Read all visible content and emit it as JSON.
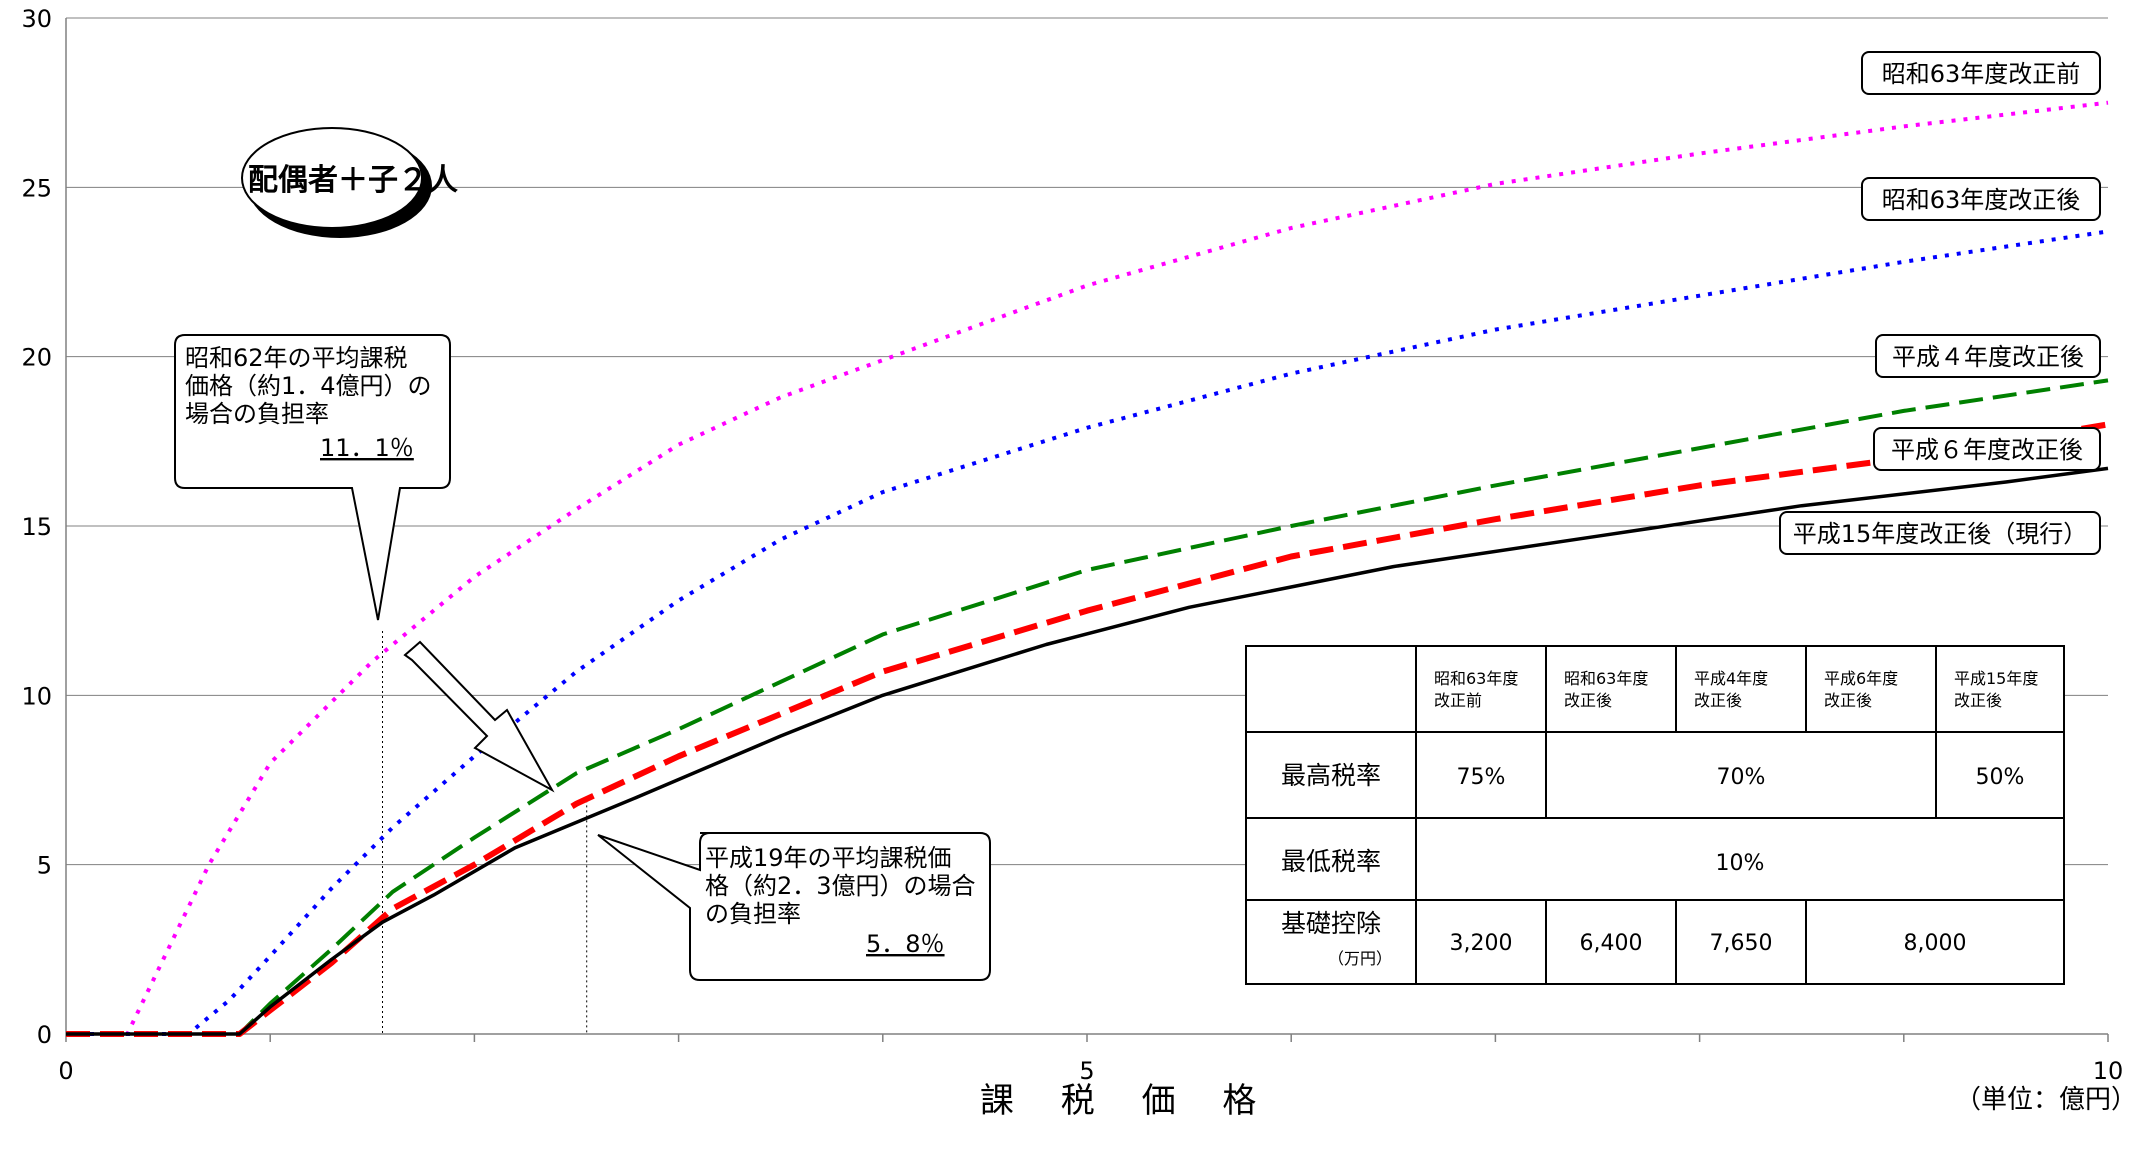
{
  "chart_data": {
    "type": "line",
    "xlabel": "課 税 価 格",
    "unit_note": "（単位：億円）",
    "xlim": [
      0,
      10
    ],
    "ylim": [
      0,
      30
    ],
    "x_ticks": [
      0,
      5,
      10
    ],
    "y_ticks": [
      0,
      5,
      10,
      15,
      20,
      25,
      30
    ],
    "grid": "horizontal",
    "series": [
      {
        "name": "昭和63年度改正前",
        "color": "#ff00ff",
        "style": "dotted",
        "points": [
          [
            0,
            0
          ],
          [
            0.3,
            0
          ],
          [
            0.5,
            2.5
          ],
          [
            0.7,
            5
          ],
          [
            1,
            8
          ],
          [
            1.5,
            11
          ],
          [
            2,
            13.5
          ],
          [
            2.5,
            15.5
          ],
          [
            3,
            17.4
          ],
          [
            3.5,
            18.8
          ],
          [
            4,
            19.9
          ],
          [
            5,
            22.1
          ],
          [
            6,
            23.8
          ],
          [
            7,
            25.1
          ],
          [
            8,
            26
          ],
          [
            9,
            26.8
          ],
          [
            10,
            27.5
          ]
        ]
      },
      {
        "name": "昭和63年度改正後",
        "color": "#0000ff",
        "style": "dotted",
        "points": [
          [
            0,
            0
          ],
          [
            0.6,
            0
          ],
          [
            0.8,
            1
          ],
          [
            1,
            2.3
          ],
          [
            1.3,
            4.3
          ],
          [
            1.6,
            6.1
          ],
          [
            2,
            8.2
          ],
          [
            2.5,
            10.7
          ],
          [
            3,
            12.8
          ],
          [
            3.5,
            14.6
          ],
          [
            4,
            16
          ],
          [
            5,
            17.9
          ],
          [
            6,
            19.5
          ],
          [
            7,
            20.8
          ],
          [
            8,
            21.8
          ],
          [
            9,
            22.8
          ],
          [
            10,
            23.7
          ]
        ]
      },
      {
        "name": "平成４年度改正後",
        "color": "#008000",
        "style": "dashed",
        "points": [
          [
            0,
            0
          ],
          [
            0.85,
            0
          ],
          [
            1,
            0.9
          ],
          [
            1.3,
            2.5
          ],
          [
            1.6,
            4.2
          ],
          [
            2,
            5.8
          ],
          [
            2.5,
            7.7
          ],
          [
            3,
            9
          ],
          [
            4,
            11.8
          ],
          [
            5,
            13.7
          ],
          [
            6,
            15
          ],
          [
            7,
            16.2
          ],
          [
            8,
            17.3
          ],
          [
            9,
            18.4
          ],
          [
            10,
            19.3
          ]
        ]
      },
      {
        "name": "平成６年度改正後",
        "color": "#ff0000",
        "style": "dashed",
        "points": [
          [
            0,
            0
          ],
          [
            0.85,
            0
          ],
          [
            1,
            0.7
          ],
          [
            1.3,
            2.1
          ],
          [
            1.6,
            3.7
          ],
          [
            2,
            5
          ],
          [
            2.5,
            6.8
          ],
          [
            3,
            8.2
          ],
          [
            4,
            10.7
          ],
          [
            5,
            12.5
          ],
          [
            6,
            14.1
          ],
          [
            7,
            15.2
          ],
          [
            8,
            16.2
          ],
          [
            9,
            17
          ],
          [
            10,
            18
          ]
        ]
      },
      {
        "name": "平成15年度改正後（現行）",
        "color": "#000000",
        "style": "solid",
        "points": [
          [
            0,
            0
          ],
          [
            0.85,
            0
          ],
          [
            1,
            0.8
          ],
          [
            1.3,
            2.2
          ],
          [
            1.55,
            3.3
          ],
          [
            1.8,
            4.1
          ],
          [
            2.2,
            5.5
          ],
          [
            2.8,
            7
          ],
          [
            3.5,
            8.8
          ],
          [
            4,
            10
          ],
          [
            4.8,
            11.5
          ],
          [
            5.5,
            12.6
          ],
          [
            6.5,
            13.8
          ],
          [
            7.5,
            14.7
          ],
          [
            8.5,
            15.6
          ],
          [
            9.5,
            16.3
          ],
          [
            10,
            16.7
          ]
        ]
      }
    ]
  },
  "badge": "配偶者＋子２人",
  "callout1": {
    "lines": [
      "昭和62年の平均課税",
      "価格（約1．4億円）の",
      "場合の負担率"
    ],
    "value": "11．1％"
  },
  "callout2": {
    "lines": [
      "平成19年の平均課税価",
      "格（約2．3億円）の場合",
      "の負担率"
    ],
    "value": "5．8％"
  },
  "table": {
    "headers": [
      "昭和63年度改正前",
      "昭和63年度改正後",
      "平成4年度改正後",
      "平成6年度改正後",
      "平成15年度改正後"
    ],
    "header_lines": [
      [
        "昭和63年度",
        "改正前"
      ],
      [
        "昭和63年度",
        "改正後"
      ],
      [
        "平成4年度",
        "改正後"
      ],
      [
        "平成6年度",
        "改正後"
      ],
      [
        "平成15年度",
        "改正後"
      ]
    ],
    "row1": {
      "label": "最高税率",
      "values": [
        "75%",
        "70%",
        "50%"
      ]
    },
    "row2": {
      "label": "最低税率",
      "values": [
        "10%"
      ]
    },
    "row3": {
      "label": "基礎控除",
      "sublabel": "（万円）",
      "values": [
        "3,200",
        "6,400",
        "7,650",
        "8,000"
      ]
    }
  }
}
